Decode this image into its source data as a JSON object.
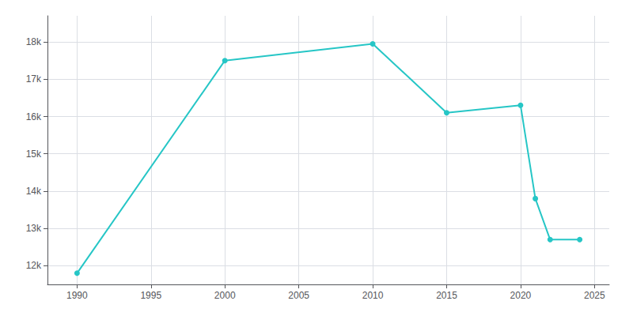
{
  "chart_data": {
    "type": "line",
    "x": [
      1990,
      2000,
      2010,
      2015,
      2020,
      2021,
      2022,
      2024
    ],
    "values": [
      11800,
      17500,
      17950,
      16100,
      16300,
      13800,
      12700,
      12700
    ],
    "color": "#26c6c6",
    "marker": "circle",
    "line_style": "solid",
    "xlim": [
      1988,
      2026
    ],
    "xticks": [
      1990,
      1995,
      2000,
      2005,
      2010,
      2015,
      2020,
      2025
    ],
    "ylim": [
      11500,
      18700
    ],
    "yticks": [
      {
        "value": 12000,
        "label": "12k"
      },
      {
        "value": 13000,
        "label": "13k"
      },
      {
        "value": 14000,
        "label": "14k"
      },
      {
        "value": 15000,
        "label": "15k"
      },
      {
        "value": 16000,
        "label": "16k"
      },
      {
        "value": 17000,
        "label": "17k"
      },
      {
        "value": 18000,
        "label": "18k"
      }
    ],
    "grid": true
  }
}
